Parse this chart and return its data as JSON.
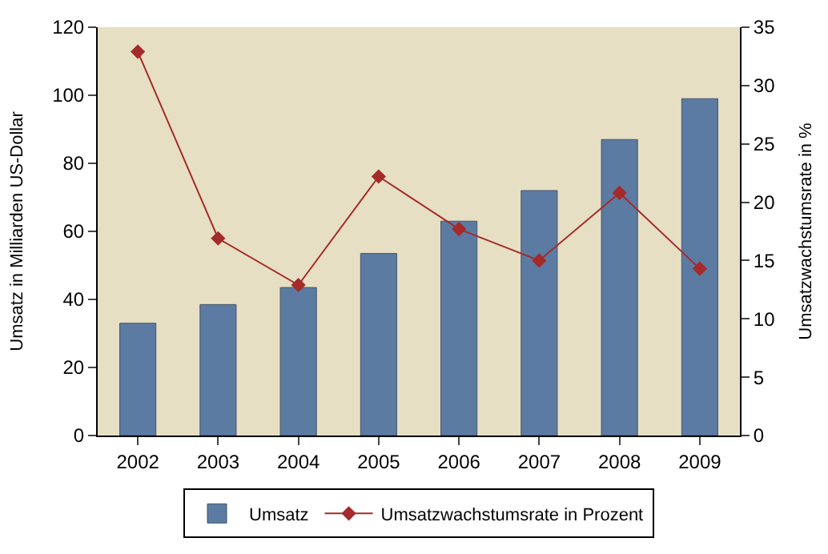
{
  "chart_data": {
    "type": "bar",
    "ylabel": "Umsatz in Milliarden US-Dollar",
    "y2label": "Umsatzwachstumsrate in %",
    "categories": [
      "2002",
      "2003",
      "2004",
      "2005",
      "2006",
      "2007",
      "2008",
      "2009"
    ],
    "series": [
      {
        "name": "Umsatz",
        "color": "#5b7ba3",
        "values": [
          33,
          38.5,
          43.5,
          53.5,
          63,
          72,
          87,
          99
        ]
      },
      {
        "name": "Umsatzwachstumsrate in Prozent",
        "type": "line",
        "axis": "y2",
        "color": "#a52a2a",
        "marker": "diamond",
        "values": [
          32.9,
          16.9,
          12.9,
          22.2,
          17.7,
          15.0,
          20.8,
          14.3
        ]
      }
    ],
    "ylim": [
      0,
      120
    ],
    "yticks": [
      0,
      20,
      40,
      60,
      80,
      100,
      120
    ],
    "y2lim": [
      0,
      35
    ],
    "y2ticks": [
      0,
      5,
      10,
      15,
      20,
      25,
      30,
      35
    ],
    "grid": false,
    "legend": "bottom"
  }
}
